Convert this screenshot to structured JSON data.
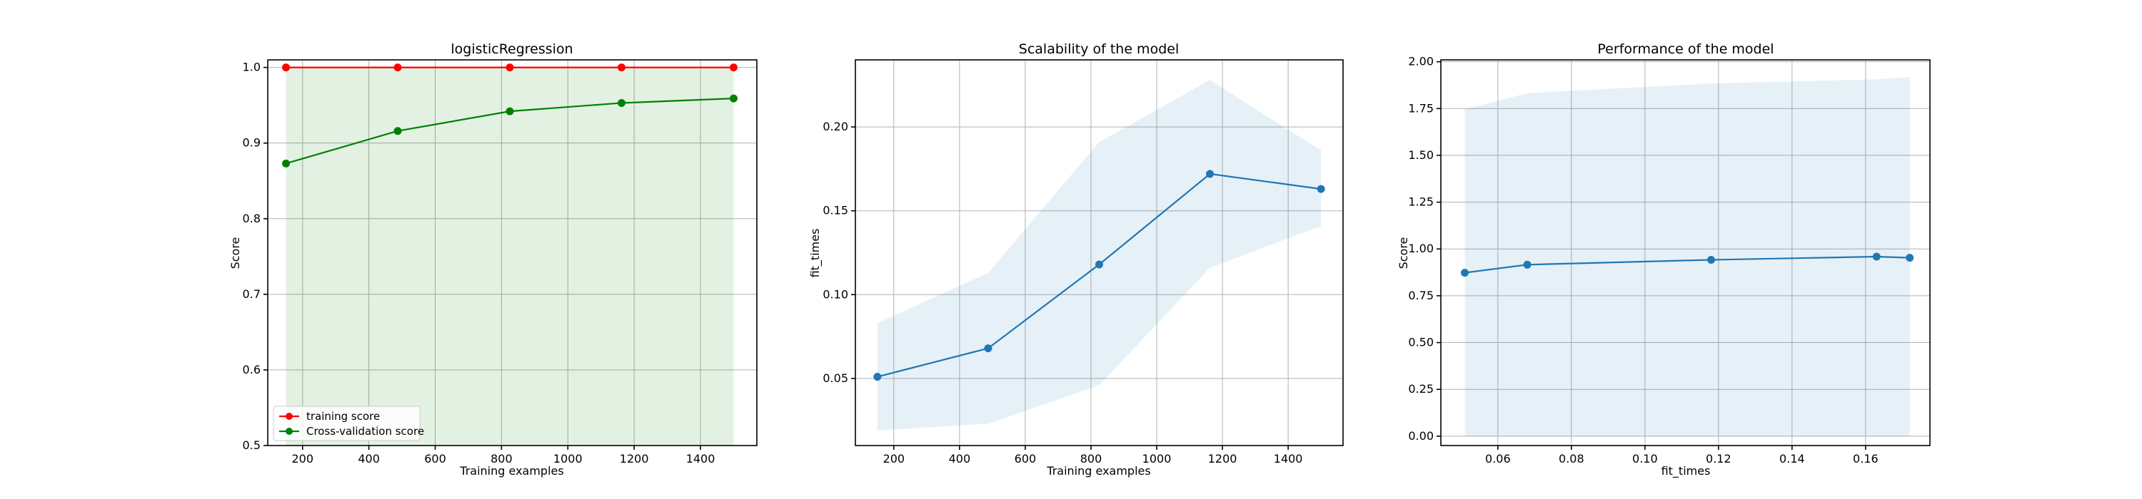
{
  "chart_data": [
    {
      "type": "line",
      "title": "logisticRegression",
      "xlabel": "Training examples",
      "ylabel": "Score",
      "xlim": [
        95,
        1570
      ],
      "ylim": [
        0.5,
        1.01
      ],
      "xticks": [
        200,
        400,
        600,
        800,
        1000,
        1200,
        1400
      ],
      "yticks": [
        0.5,
        0.6,
        0.7,
        0.8,
        0.9,
        1.0
      ],
      "grid": true,
      "legend": "lower-left",
      "x": [
        150,
        487,
        825,
        1162,
        1500
      ],
      "series": [
        {
          "name": "training score",
          "color": "#ff0000",
          "values": [
            1.0,
            1.0,
            1.0,
            1.0,
            1.0
          ],
          "band_lower": [
            1.0,
            1.0,
            1.0,
            1.0,
            1.0
          ],
          "band_upper": [
            1.0,
            1.0,
            1.0,
            1.0,
            1.0
          ]
        },
        {
          "name": "Cross-validation score",
          "color": "#008000",
          "values": [
            0.873,
            0.916,
            0.942,
            0.953,
            0.959
          ],
          "band_lower": [
            0.5,
            0.5,
            0.5,
            0.5,
            0.5
          ],
          "band_upper": [
            1.0,
            1.0,
            1.0,
            1.0,
            1.0
          ]
        }
      ]
    },
    {
      "type": "line",
      "title": "Scalability of the model",
      "xlabel": "Training examples",
      "ylabel": "fit_times",
      "xlim": [
        83,
        1567
      ],
      "ylim": [
        0.01,
        0.24
      ],
      "xticks": [
        200,
        400,
        600,
        800,
        1000,
        1200,
        1400
      ],
      "yticks": [
        0.05,
        0.1,
        0.15,
        0.2
      ],
      "grid": true,
      "x": [
        150,
        487,
        825,
        1162,
        1500
      ],
      "series": [
        {
          "name": "",
          "color": "#1f77b4",
          "values": [
            0.051,
            0.068,
            0.118,
            0.172,
            0.163
          ],
          "band_lower": [
            0.019,
            0.023,
            0.046,
            0.116,
            0.141
          ],
          "band_upper": [
            0.083,
            0.113,
            0.191,
            0.228,
            0.186
          ]
        }
      ]
    },
    {
      "type": "line",
      "title": "Performance of the model",
      "xlabel": "fit_times",
      "ylabel": "Score",
      "xlim": [
        0.0445,
        0.1775
      ],
      "ylim": [
        -0.05,
        2.01
      ],
      "xticks": [
        0.06,
        0.08,
        0.1,
        0.12,
        0.14,
        0.16
      ],
      "yticks": [
        0.0,
        0.25,
        0.5,
        0.75,
        1.0,
        1.25,
        1.5,
        1.75,
        2.0
      ],
      "grid": true,
      "x": [
        0.051,
        0.068,
        0.118,
        0.163,
        0.172
      ],
      "series": [
        {
          "name": "",
          "color": "#1f77b4",
          "values": [
            0.873,
            0.916,
            0.942,
            0.959,
            0.953
          ],
          "band_lower": [
            0.0,
            0.0,
            0.0,
            0.0,
            0.0
          ],
          "band_upper": [
            1.746,
            1.832,
            1.884,
            1.906,
            1.918
          ]
        }
      ]
    }
  ]
}
